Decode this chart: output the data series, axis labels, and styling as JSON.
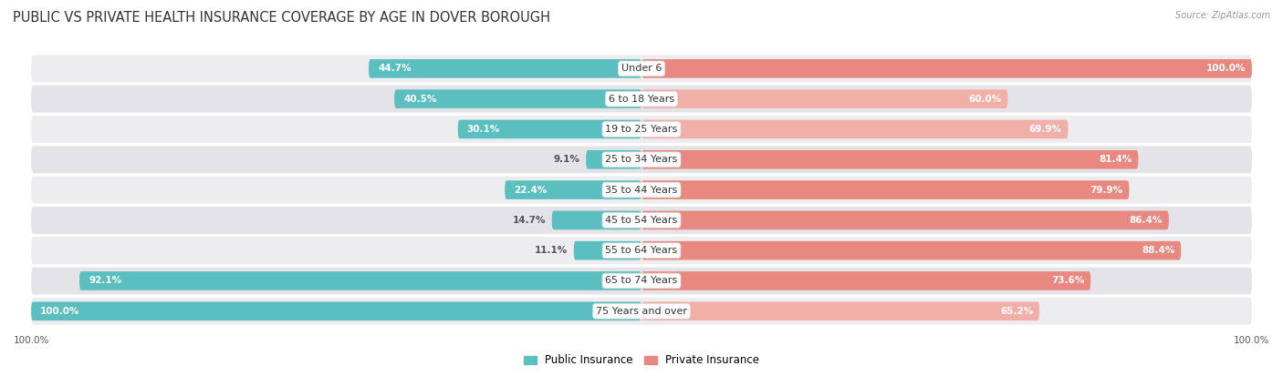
{
  "title": "PUBLIC VS PRIVATE HEALTH INSURANCE COVERAGE BY AGE IN DOVER BOROUGH",
  "source": "Source: ZipAtlas.com",
  "categories": [
    "Under 6",
    "6 to 18 Years",
    "19 to 25 Years",
    "25 to 34 Years",
    "35 to 44 Years",
    "45 to 54 Years",
    "55 to 64 Years",
    "65 to 74 Years",
    "75 Years and over"
  ],
  "public_values": [
    44.7,
    40.5,
    30.1,
    9.1,
    22.4,
    14.7,
    11.1,
    92.1,
    100.0
  ],
  "private_values": [
    100.0,
    60.0,
    69.9,
    81.4,
    79.9,
    86.4,
    88.4,
    73.6,
    65.2
  ],
  "public_color": "#5bbfbf",
  "private_color": "#e88880",
  "private_color_light": "#f0b0a8",
  "row_bg_color": "#e8e8ec",
  "row_bg_light": "#f0f0f4",
  "title_color": "#333333",
  "label_color": "#333333",
  "legend_public": "Public Insurance",
  "legend_private": "Private Insurance",
  "max_value": 100.0,
  "bar_height": 0.62,
  "title_fontsize": 10.5,
  "label_fontsize": 8.0,
  "value_fontsize": 7.5,
  "axis_fontsize": 7.5,
  "inside_threshold_public": 15,
  "inside_threshold_private": 15
}
